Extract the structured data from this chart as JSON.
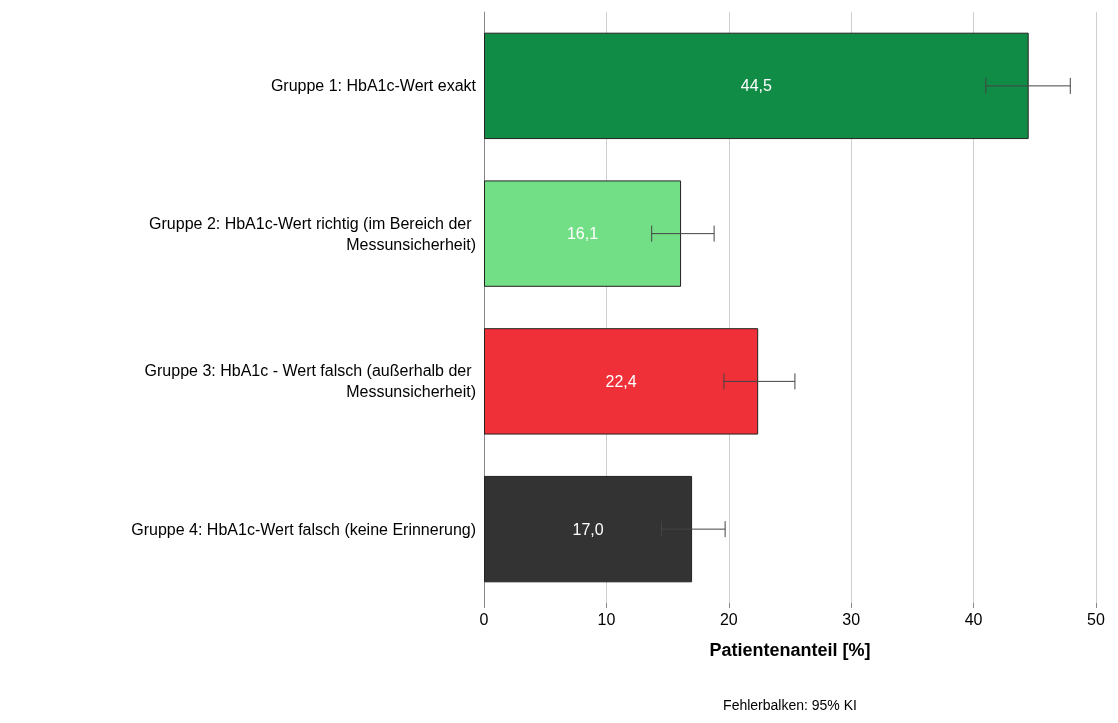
{
  "chart_data": {
    "type": "bar",
    "orientation": "horizontal",
    "xlabel": "Patientenanteil [%]",
    "categories": [
      "Gruppe 1: HbA1c-Wert exakt",
      "Gruppe 2: HbA1c-Wert richtig (im Bereich der Messunsicherheit)",
      "Gruppe 3: HbA1c - Wert falsch (außerhalb der Messunsicherheit)",
      "Gruppe 4: HbA1c-Wert falsch (keine Erinnerung)"
    ],
    "values": [
      44.5,
      16.1,
      22.4,
      17.0
    ],
    "value_labels": [
      "44,5",
      "16,1",
      "22,4",
      "17,0"
    ],
    "colors": [
      "#108c47",
      "#72de85",
      "#ef3039",
      "#333333"
    ],
    "errors": [
      [
        41.0,
        47.9
      ],
      [
        13.7,
        18.8
      ],
      [
        19.6,
        25.4
      ],
      [
        14.5,
        19.7
      ]
    ],
    "xlim": [
      0,
      50
    ],
    "xticks": [
      0,
      10,
      20,
      30,
      40,
      50
    ],
    "grid": "x",
    "annotations": [
      "Fehlerbalken: 95% KI"
    ]
  }
}
